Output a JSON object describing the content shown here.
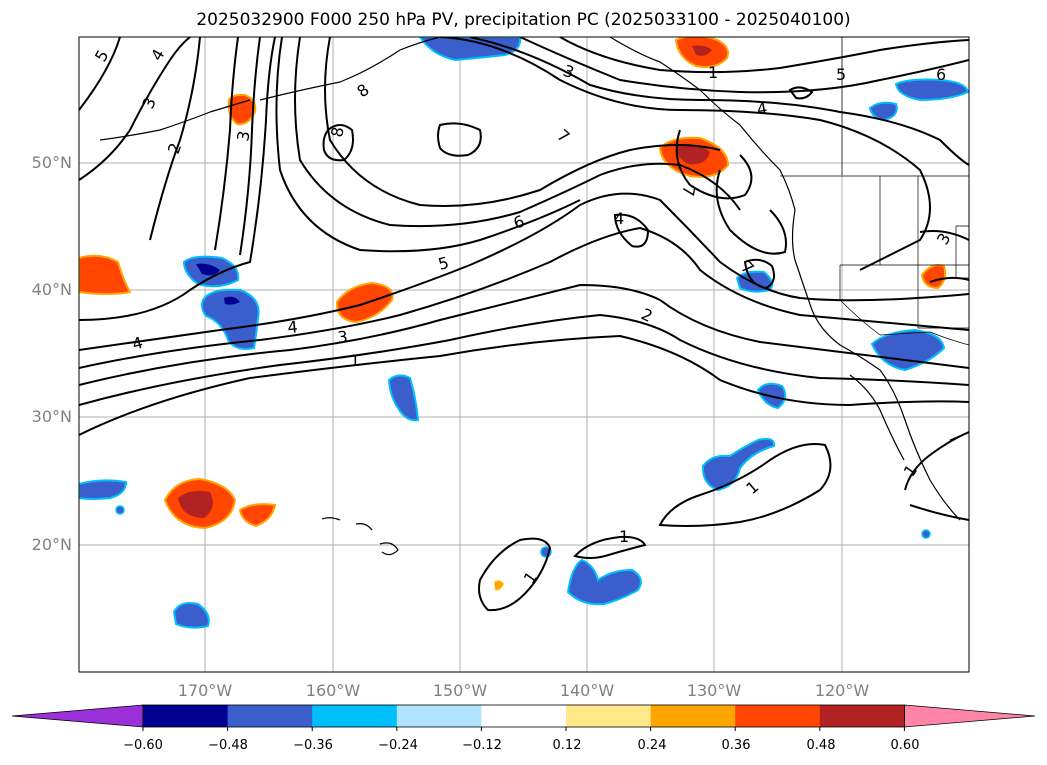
{
  "title": "2025032900 F000 250 hPa PV, precipitation PC (2025033100 - 2025040100)",
  "lat_labels": [
    "50°N",
    "40°N",
    "30°N",
    "20°N"
  ],
  "lon_labels": [
    "170°W",
    "160°W",
    "150°W",
    "140°W",
    "130°W",
    "120°W"
  ],
  "colorbar": {
    "tick_labels": [
      "−0.60",
      "−0.48",
      "−0.36",
      "−0.24",
      "−0.12",
      "0.12",
      "0.24",
      "0.36",
      "0.48",
      "0.60"
    ],
    "colors": [
      "#9b30d9",
      "#000090",
      "#3a5fcd",
      "#00bfff",
      "#aee4ff",
      "#ffffff",
      "#ffe98a",
      "#ffa500",
      "#ff4500",
      "#b22222",
      "#ff85a8"
    ]
  },
  "contour_labels": [
    "5",
    "4",
    "3",
    "2",
    "3",
    "8",
    "8",
    "3",
    "1",
    "5",
    "6",
    "4",
    "7",
    "7",
    "6",
    "4",
    "5",
    "4",
    "3",
    "1",
    "2",
    "7",
    "1",
    "1",
    "1",
    "1",
    "3",
    "4"
  ],
  "colors": {
    "positive_pc": "#ff4500",
    "positive_pc_core": "#b22222",
    "positive_pc_edge": "#ffa500",
    "negative_pc": "#3a5fcd",
    "negative_pc_core": "#000090",
    "negative_pc_edge": "#00bfff"
  }
}
